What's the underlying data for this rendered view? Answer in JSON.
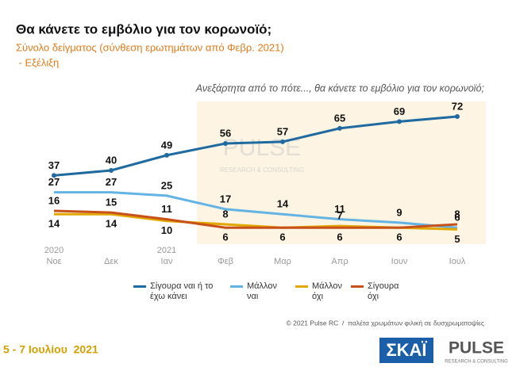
{
  "chart_data": {
    "type": "line",
    "title": "Θα κάνετε το εμβόλιο για τον κορωνοϊό;",
    "subtitle": [
      "Σύνολο δείγματος (σύνθεση ερωτημάτων από Φεβρ. 2021)",
      " - Εξέλιξη"
    ],
    "question": "Ανεξάρτητα από το πότε..., θα κάνετε το εμβόλιο για τον κορωνοϊό;",
    "years": [
      "2020",
      null,
      "2021",
      null,
      null,
      null,
      null,
      null
    ],
    "categories": [
      "Νοε",
      "Δεκ",
      "Ιαν",
      "Φεβ",
      "Μαρ",
      "Απρ",
      "Ιουν",
      "Ιουλ"
    ],
    "ylim": [
      0,
      80
    ],
    "series": [
      {
        "name": "Σίγουρα ναι ή το έχω κάνει",
        "color": "#1f6aa0",
        "values": [
          37,
          40,
          49,
          56,
          57,
          65,
          69,
          72
        ]
      },
      {
        "name": "Μάλλον ναι",
        "color": "#63b3e3",
        "values": [
          27,
          27,
          25,
          17,
          14,
          11,
          9,
          6
        ]
      },
      {
        "name": "Μάλλον όχι",
        "color": "#e0a800",
        "values": [
          14,
          14,
          10,
          8,
          6,
          7,
          6,
          5
        ]
      },
      {
        "name": "Σίγουρα όχι",
        "color": "#c8501a",
        "values": [
          16,
          15,
          11,
          6,
          6,
          6,
          6,
          8
        ]
      }
    ],
    "source": "© 2021 Pulse RC  /  παλέτα χρωμάτων φιλική σε δυσχρωματοψίες",
    "date": "5 - 7 Ιουλίου  2021",
    "watermark": [
      "PULSE",
      "RESEARCH & CONSULTING"
    ],
    "logos": [
      "ΣΚΑΪ",
      "PULSE",
      "RESEARCH & CONSULTING"
    ]
  }
}
